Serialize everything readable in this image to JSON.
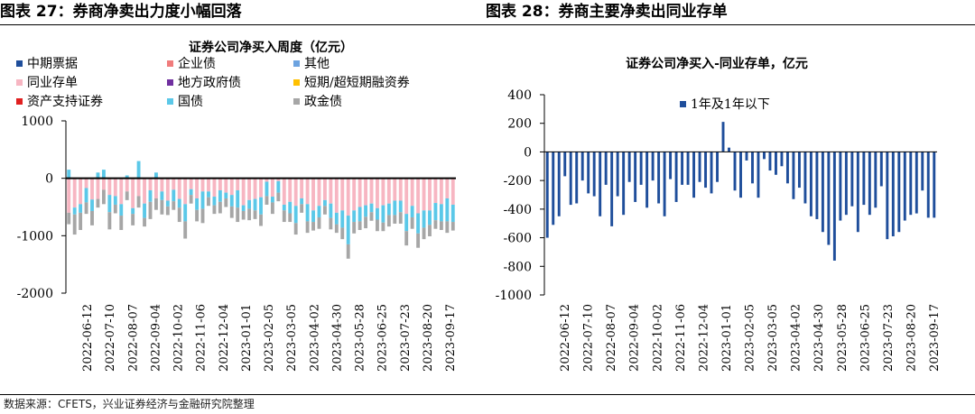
{
  "header": {
    "left_title": "图表 27：券商净卖出力度小幅回落",
    "right_title": "图表 28：券商主要净卖出同业存单"
  },
  "footer": {
    "source": "数据来源：CFETS，兴业证券经济与金融研究院整理"
  },
  "chart_data": [
    {
      "type": "bar",
      "stacked": true,
      "title": "证券公司净买入周度（亿元）",
      "xlabel": "",
      "ylabel": "",
      "ylim": [
        -2000,
        1000
      ],
      "yticks": [
        1000,
        0,
        -1000,
        -2000
      ],
      "xtick_labels": [
        "2022-06-12",
        "2022-07-10",
        "2022-08-07",
        "2022-09-04",
        "2022-10-02",
        "2022-11-06",
        "2022-12-04",
        "2023-01-01",
        "2023-02-05",
        "2023-03-05",
        "2023-04-02",
        "2023-04-30",
        "2023-05-28",
        "2023-06-25",
        "2023-07-23",
        "2023-08-20",
        "2023-09-17"
      ],
      "legend_position": "top-left",
      "grid": false,
      "num_weeks": 67,
      "series": [
        {
          "name": "中期票据",
          "color": "#1F4E9B",
          "values": [
            0,
            0,
            0,
            0,
            0,
            0,
            0,
            0,
            0,
            0,
            0,
            0,
            0,
            0,
            0,
            0,
            0,
            0,
            0,
            0,
            0,
            0,
            0,
            0,
            0,
            0,
            0,
            0,
            0,
            0,
            0,
            0,
            0,
            0,
            0,
            0,
            0,
            0,
            0,
            0,
            0,
            0,
            0,
            0,
            0,
            0,
            0,
            0,
            0,
            0,
            0,
            0,
            0,
            0,
            0,
            0,
            0,
            0,
            0,
            0,
            0,
            0,
            0,
            0,
            0,
            0,
            0
          ]
        },
        {
          "name": "企业债",
          "color": "#F07C7C",
          "values": [
            0,
            0,
            0,
            0,
            0,
            0,
            0,
            0,
            0,
            0,
            0,
            0,
            0,
            0,
            0,
            0,
            0,
            0,
            0,
            0,
            0,
            0,
            0,
            0,
            0,
            0,
            0,
            0,
            0,
            0,
            0,
            0,
            0,
            0,
            0,
            0,
            0,
            0,
            0,
            0,
            0,
            0,
            0,
            0,
            0,
            0,
            0,
            0,
            0,
            0,
            0,
            0,
            0,
            0,
            0,
            0,
            0,
            0,
            0,
            0,
            0,
            0,
            0,
            0,
            0,
            0,
            0
          ]
        },
        {
          "name": "其他",
          "color": "#6CA3E0",
          "values": [
            0,
            0,
            0,
            0,
            0,
            0,
            0,
            0,
            0,
            0,
            0,
            0,
            0,
            0,
            0,
            0,
            0,
            0,
            0,
            0,
            0,
            0,
            0,
            0,
            0,
            0,
            0,
            0,
            0,
            0,
            0,
            0,
            0,
            0,
            0,
            0,
            0,
            0,
            0,
            0,
            0,
            0,
            0,
            0,
            0,
            0,
            0,
            0,
            0,
            0,
            0,
            0,
            0,
            0,
            0,
            0,
            0,
            0,
            0,
            0,
            0,
            0,
            0,
            0,
            0,
            0,
            0
          ]
        },
        {
          "name": "同业存单",
          "color": "#F7B6C2",
          "values": [
            -600,
            -510,
            -450,
            -170,
            -370,
            -360,
            -200,
            -290,
            -310,
            -450,
            -230,
            -520,
            -310,
            -440,
            -210,
            -350,
            -230,
            -390,
            -200,
            -360,
            -450,
            -190,
            -350,
            -230,
            -230,
            -320,
            -210,
            -250,
            -290,
            -210,
            -470,
            -380,
            -360,
            -330,
            -60,
            -320,
            -50,
            -460,
            -410,
            -480,
            -350,
            -450,
            -560,
            -480,
            -380,
            -440,
            -600,
            -560,
            -650,
            -560,
            -500,
            -470,
            -440,
            -520,
            -470,
            -440,
            -390,
            -390,
            -620,
            -480,
            -610,
            -560,
            -560,
            -430,
            -450,
            -350,
            -460
          ]
        },
        {
          "name": "地方政府债",
          "color": "#7030A0",
          "values": [
            0,
            0,
            0,
            0,
            0,
            0,
            0,
            0,
            0,
            0,
            0,
            0,
            0,
            0,
            0,
            0,
            0,
            0,
            0,
            0,
            0,
            0,
            0,
            0,
            0,
            0,
            0,
            0,
            0,
            0,
            0,
            0,
            0,
            0,
            0,
            0,
            0,
            0,
            0,
            0,
            0,
            0,
            0,
            0,
            0,
            0,
            0,
            0,
            0,
            0,
            0,
            0,
            0,
            0,
            0,
            0,
            0,
            0,
            0,
            0,
            0,
            0,
            0,
            0,
            0,
            0,
            0
          ]
        },
        {
          "name": "短期/超短期融资券",
          "color": "#FFC000",
          "values": [
            0,
            0,
            0,
            0,
            0,
            0,
            0,
            0,
            0,
            0,
            0,
            0,
            0,
            0,
            0,
            0,
            0,
            0,
            0,
            0,
            0,
            0,
            0,
            0,
            0,
            0,
            0,
            0,
            0,
            0,
            0,
            0,
            0,
            0,
            0,
            0,
            0,
            0,
            0,
            0,
            0,
            0,
            0,
            0,
            0,
            0,
            0,
            0,
            0,
            0,
            0,
            0,
            0,
            0,
            0,
            0,
            0,
            0,
            0,
            0,
            0,
            0,
            0,
            0,
            0,
            0,
            0
          ]
        },
        {
          "name": "资产支持证券",
          "color": "#E02020",
          "values": [
            0,
            0,
            0,
            0,
            0,
            0,
            0,
            0,
            0,
            0,
            0,
            0,
            0,
            0,
            0,
            0,
            0,
            0,
            0,
            0,
            0,
            0,
            0,
            0,
            0,
            0,
            0,
            0,
            0,
            0,
            0,
            0,
            0,
            0,
            0,
            0,
            0,
            0,
            0,
            0,
            0,
            0,
            0,
            0,
            0,
            0,
            0,
            0,
            0,
            0,
            0,
            0,
            0,
            0,
            0,
            0,
            0,
            0,
            0,
            0,
            0,
            0,
            0,
            0,
            0,
            0,
            0
          ]
        },
        {
          "name": "国债",
          "color": "#5BC8E8",
          "values": [
            150,
            -120,
            -150,
            -250,
            -200,
            100,
            150,
            -300,
            -150,
            -200,
            50,
            -100,
            300,
            -250,
            -200,
            100,
            -150,
            -100,
            -200,
            -150,
            -300,
            -100,
            -200,
            -300,
            -100,
            -150,
            -200,
            -100,
            -200,
            -300,
            -100,
            -150,
            -200,
            -300,
            -250,
            -100,
            -200,
            -100,
            -200,
            -300,
            -100,
            -300,
            -200,
            -200,
            -100,
            -250,
            -200,
            -300,
            -500,
            -200,
            -250,
            -200,
            -150,
            -200,
            -300,
            -200,
            -250,
            -200,
            -300,
            -200,
            -350,
            -300,
            -250,
            -300,
            -300,
            -400,
            -300
          ]
        },
        {
          "name": "政金债",
          "color": "#A6A6A6",
          "values": [
            -200,
            -350,
            -300,
            -200,
            -250,
            -150,
            -250,
            -300,
            -150,
            -250,
            -150,
            -200,
            -200,
            -150,
            -300,
            -200,
            -250,
            -150,
            -150,
            -250,
            -300,
            -150,
            -200,
            -250,
            -150,
            -150,
            -200,
            -150,
            -200,
            -250,
            -150,
            -200,
            -150,
            -200,
            -150,
            -200,
            -150,
            -200,
            -150,
            -200,
            -150,
            -200,
            -150,
            -200,
            -150,
            -200,
            -150,
            -200,
            -250,
            -200,
            -150,
            -200,
            -150,
            -200,
            -150,
            -200,
            -150,
            -200,
            -250,
            -200,
            -250,
            -200,
            -200,
            -150,
            -150,
            -200,
            -150
          ]
        }
      ]
    },
    {
      "type": "bar",
      "title": "证券公司净买入-同业存单，亿元",
      "xlabel": "",
      "ylabel": "",
      "ylim": [
        -1000,
        400
      ],
      "yticks": [
        400,
        200,
        0,
        -200,
        -400,
        -600,
        -800,
        -1000
      ],
      "xtick_labels": [
        "2022-06-12",
        "2022-07-10",
        "2022-08-07",
        "2022-09-04",
        "2022-10-02",
        "2022-11-06",
        "2022-12-04",
        "2023-01-01",
        "2023-02-05",
        "2023-03-05",
        "2023-04-02",
        "2023-04-30",
        "2023-05-28",
        "2023-06-25",
        "2023-07-23",
        "2023-08-20",
        "2023-09-17"
      ],
      "legend_position": "top-left",
      "grid": false,
      "series": [
        {
          "name": "1年及1年以下",
          "color": "#1F4E9B",
          "values": [
            -600,
            -510,
            -450,
            -170,
            -370,
            -360,
            -200,
            -290,
            -310,
            -450,
            -230,
            -520,
            -310,
            -440,
            -210,
            -350,
            -230,
            -390,
            -200,
            -360,
            -450,
            -190,
            -350,
            -230,
            -230,
            -320,
            -210,
            -250,
            -290,
            -210,
            210,
            30,
            -270,
            -320,
            -60,
            -220,
            -320,
            -50,
            -130,
            -160,
            -100,
            -220,
            -330,
            -250,
            -360,
            -450,
            -470,
            -560,
            -650,
            -760,
            -480,
            -440,
            -380,
            -560,
            -370,
            -440,
            -390,
            -240,
            -610,
            -590,
            -560,
            -480,
            -440,
            -430,
            -270,
            -460,
            -460
          ]
        }
      ]
    }
  ]
}
